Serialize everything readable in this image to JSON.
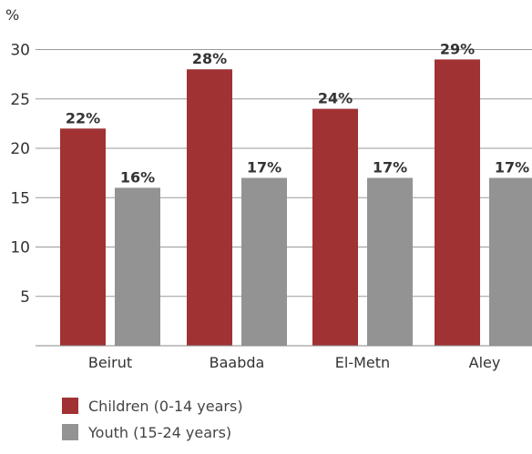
{
  "chart_data": {
    "type": "bar",
    "unit_label": "%",
    "categories": [
      "Beirut",
      "Baabda",
      "El-Metn",
      "Aley"
    ],
    "series": [
      {
        "name": "Children (0-14 years)",
        "color": "#a03234",
        "values": [
          22,
          28,
          24,
          29
        ],
        "labels": [
          "22%",
          "28%",
          "24%",
          "29%"
        ]
      },
      {
        "name": "Youth (15-24 years)",
        "color": "#939393",
        "values": [
          16,
          17,
          17,
          17
        ],
        "labels": [
          "16%",
          "17%",
          "17%",
          "17%"
        ]
      }
    ],
    "ylim": [
      0,
      30
    ],
    "yticks": [
      5,
      10,
      15,
      20,
      25,
      30
    ],
    "ytick_labels": [
      "5",
      "10",
      "15",
      "20",
      "25",
      "30"
    ],
    "grid": true,
    "legend_position": "bottom-left"
  }
}
